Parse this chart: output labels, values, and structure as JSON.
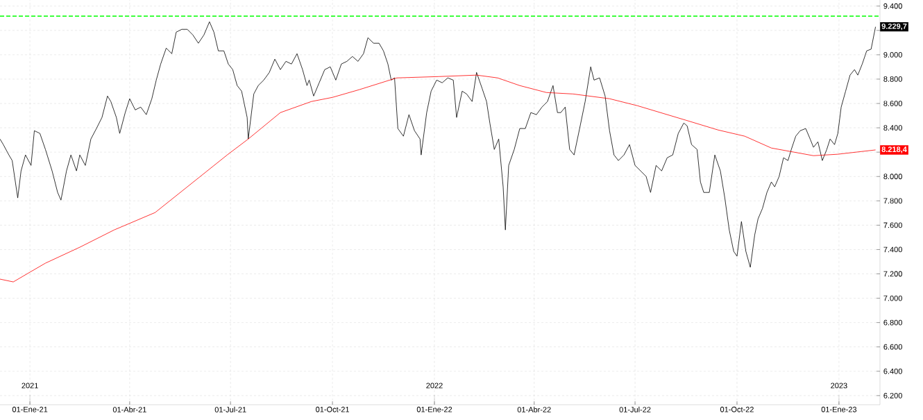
{
  "chart_data": {
    "type": "line",
    "xlim": [
      "2020-12-05",
      "2023-02-07"
    ],
    "ylim": [
      6125,
      9450
    ],
    "xticks": [
      {
        "value": "2021-01-01",
        "label": "01-Ene-21"
      },
      {
        "value": "2021-04-01",
        "label": "01-Abr-21"
      },
      {
        "value": "2021-07-01",
        "label": "01-Jul-21"
      },
      {
        "value": "2021-10-01",
        "label": "01-Oct-21"
      },
      {
        "value": "2022-01-01",
        "label": "01-Ene-22"
      },
      {
        "value": "2022-04-01",
        "label": "01-Abr-22"
      },
      {
        "value": "2022-07-01",
        "label": "01-Jul-22"
      },
      {
        "value": "2022-10-01",
        "label": "01-Oct-22"
      },
      {
        "value": "2023-01-01",
        "label": "01-Ene-23"
      }
    ],
    "yticks": [
      {
        "value": 6200,
        "label": "6.200"
      },
      {
        "value": 6400,
        "label": "6.400"
      },
      {
        "value": 6600,
        "label": "6.600"
      },
      {
        "value": 6800,
        "label": "6.800"
      },
      {
        "value": 7000,
        "label": "7.000"
      },
      {
        "value": 7200,
        "label": "7.200"
      },
      {
        "value": 7400,
        "label": "7.400"
      },
      {
        "value": 7600,
        "label": "7.600"
      },
      {
        "value": 7800,
        "label": "7.800"
      },
      {
        "value": 8000,
        "label": "8.000"
      },
      {
        "value": 8200,
        "label": null
      },
      {
        "value": 8400,
        "label": "8.400"
      },
      {
        "value": 8600,
        "label": "8.600"
      },
      {
        "value": 8800,
        "label": "8.800"
      },
      {
        "value": 9000,
        "label": "9.000"
      },
      {
        "value": 9200,
        "label": null
      },
      {
        "value": 9400,
        "label": "9.400"
      }
    ],
    "grid": true,
    "series": [
      {
        "color": "#000000",
        "x": [
          "2020-12-05",
          "2020-12-08",
          "2020-12-13",
          "2020-12-16",
          "2020-12-21",
          "2020-12-24",
          "2020-12-28",
          "2021-01-02",
          "2021-01-05",
          "2021-01-10",
          "2021-01-15",
          "2021-01-21",
          "2021-01-26",
          "2021-01-29",
          "2021-02-03",
          "2021-02-07",
          "2021-02-12",
          "2021-02-15",
          "2021-02-20",
          "2021-02-25",
          "2021-03-02",
          "2021-03-07",
          "2021-03-12",
          "2021-03-15",
          "2021-03-20",
          "2021-03-23",
          "2021-03-28",
          "2021-04-01",
          "2021-04-06",
          "2021-04-11",
          "2021-04-16",
          "2021-04-21",
          "2021-04-25",
          "2021-04-29",
          "2021-05-04",
          "2021-05-09",
          "2021-05-13",
          "2021-05-18",
          "2021-05-23",
          "2021-05-28",
          "2021-06-02",
          "2021-06-07",
          "2021-06-12",
          "2021-06-16",
          "2021-06-20",
          "2021-06-25",
          "2021-06-29",
          "2021-07-03",
          "2021-07-07",
          "2021-07-11",
          "2021-07-16",
          "2021-07-17",
          "2021-07-22",
          "2021-07-26",
          "2021-07-31",
          "2021-08-05",
          "2021-08-10",
          "2021-08-15",
          "2021-08-20",
          "2021-08-25",
          "2021-08-30",
          "2021-09-04",
          "2021-09-08",
          "2021-09-10",
          "2021-09-14",
          "2021-09-19",
          "2021-09-24",
          "2021-09-29",
          "2021-10-04",
          "2021-10-09",
          "2021-10-14",
          "2021-10-19",
          "2021-10-24",
          "2021-10-29",
          "2021-11-02",
          "2021-11-07",
          "2021-11-12",
          "2021-11-16",
          "2021-11-20",
          "2021-11-23",
          "2021-11-26",
          "2021-11-29",
          "2021-12-04",
          "2021-12-09",
          "2021-12-14",
          "2021-12-19",
          "2021-12-20",
          "2021-12-25",
          "2021-12-29",
          "2022-01-03",
          "2022-01-08",
          "2022-01-13",
          "2022-01-18",
          "2022-01-21",
          "2022-01-26",
          "2022-01-30",
          "2022-02-04",
          "2022-02-08",
          "2022-02-13",
          "2022-02-17",
          "2022-02-20",
          "2022-02-24",
          "2022-02-28",
          "2022-03-04",
          "2022-03-06",
          "2022-03-09",
          "2022-03-14",
          "2022-03-19",
          "2022-03-24",
          "2022-03-29",
          "2022-04-03",
          "2022-04-08",
          "2022-04-13",
          "2022-04-18",
          "2022-04-22",
          "2022-04-25",
          "2022-04-29",
          "2022-05-03",
          "2022-05-07",
          "2022-05-12",
          "2022-05-17",
          "2022-05-22",
          "2022-05-25",
          "2022-05-30",
          "2022-06-04",
          "2022-06-08",
          "2022-06-12",
          "2022-06-16",
          "2022-06-21",
          "2022-06-26",
          "2022-07-01",
          "2022-07-06",
          "2022-07-11",
          "2022-07-15",
          "2022-07-20",
          "2022-07-25",
          "2022-07-30",
          "2022-08-04",
          "2022-08-09",
          "2022-08-14",
          "2022-08-17",
          "2022-08-21",
          "2022-08-26",
          "2022-08-29",
          "2022-09-01",
          "2022-09-06",
          "2022-09-11",
          "2022-09-16",
          "2022-09-20",
          "2022-09-24",
          "2022-09-28",
          "2022-10-01",
          "2022-10-05",
          "2022-10-09",
          "2022-10-13",
          "2022-10-17",
          "2022-10-20",
          "2022-10-24",
          "2022-10-28",
          "2022-11-01",
          "2022-11-04",
          "2022-11-08",
          "2022-11-12",
          "2022-11-16",
          "2022-11-19",
          "2022-11-23",
          "2022-11-27",
          "2022-12-02",
          "2022-12-06",
          "2022-12-09",
          "2022-12-13",
          "2022-12-17",
          "2022-12-21",
          "2022-12-24",
          "2022-12-28",
          "2022-12-31",
          "2023-01-03",
          "2023-01-07",
          "2023-01-11",
          "2023-01-15",
          "2023-01-18",
          "2023-01-22",
          "2023-01-26",
          "2023-01-30",
          "2023-02-03"
        ],
        "values": [
          8308,
          8262,
          8177,
          8131,
          7824,
          8046,
          8177,
          8091,
          8376,
          8354,
          8222,
          8046,
          7869,
          7806,
          8046,
          8177,
          8046,
          8177,
          8091,
          8308,
          8394,
          8485,
          8661,
          8616,
          8485,
          8354,
          8525,
          8639,
          8547,
          8570,
          8508,
          8639,
          8792,
          8924,
          9055,
          9009,
          9186,
          9209,
          9209,
          9163,
          9095,
          9163,
          9271,
          9186,
          9032,
          9032,
          8924,
          8878,
          8747,
          8701,
          8485,
          8308,
          8678,
          8747,
          8792,
          8855,
          8964,
          8878,
          8946,
          8924,
          9009,
          8878,
          8747,
          8792,
          8661,
          8770,
          8878,
          8901,
          8792,
          8924,
          8946,
          8986,
          8946,
          9009,
          9140,
          9095,
          9095,
          9032,
          8924,
          8792,
          8810,
          8394,
          8331,
          8508,
          8376,
          8308,
          8177,
          8525,
          8701,
          8792,
          8770,
          8810,
          8792,
          8485,
          8701,
          8678,
          8616,
          8855,
          8724,
          8616,
          8439,
          8222,
          8308,
          7915,
          7561,
          8091,
          8222,
          8394,
          8394,
          8525,
          8508,
          8570,
          8616,
          8747,
          8525,
          8525,
          8570,
          8222,
          8177,
          8394,
          8616,
          8901,
          8792,
          8810,
          8661,
          8376,
          8177,
          8131,
          8177,
          8262,
          8091,
          8046,
          8000,
          7869,
          8091,
          8046,
          8154,
          8177,
          8354,
          8439,
          8416,
          8262,
          8222,
          7955,
          7869,
          7869,
          8177,
          8046,
          7824,
          7561,
          7385,
          7345,
          7630,
          7385,
          7254,
          7521,
          7652,
          7738,
          7869,
          7955,
          7915,
          8000,
          8154,
          8131,
          8222,
          8331,
          8376,
          8394,
          8308,
          8240,
          8285,
          8131,
          8222,
          8308,
          8262,
          8354,
          8570,
          8701,
          8833,
          8878,
          8833,
          8924,
          9032,
          9046,
          9229.7
        ],
        "value_labels": [
          null,
          null,
          null,
          null,
          null,
          null,
          null,
          null,
          null,
          null,
          null,
          null,
          null,
          null,
          null,
          null,
          null,
          null,
          null,
          null,
          null,
          null,
          null,
          null,
          null,
          null,
          null,
          null,
          null,
          null,
          null,
          null,
          null,
          null,
          null,
          null,
          null,
          null,
          null,
          null,
          null,
          null,
          null,
          null,
          null,
          null,
          null,
          null,
          null,
          null,
          null,
          null,
          null,
          null,
          null,
          null,
          null,
          null,
          null,
          null,
          null,
          null,
          null,
          null,
          null,
          null,
          null,
          null,
          null,
          null,
          null,
          null,
          null,
          null,
          null,
          null,
          null,
          null,
          null,
          null,
          null,
          null,
          null,
          null,
          null,
          null,
          null,
          null,
          null,
          null,
          null,
          null,
          null,
          null,
          null,
          null,
          null,
          null,
          null,
          null,
          null,
          null,
          null,
          null,
          null,
          null,
          null,
          null,
          null,
          null,
          null,
          null,
          null,
          null,
          null,
          null,
          null,
          null,
          null,
          null,
          null,
          null,
          null,
          null,
          null,
          null,
          null,
          null,
          null,
          null,
          null,
          null,
          null,
          null,
          null,
          null,
          null,
          null,
          null,
          null,
          null,
          null,
          null,
          null,
          null,
          null,
          null,
          null,
          null,
          null,
          null,
          null,
          null,
          null,
          null,
          null,
          null,
          null,
          null,
          null,
          null,
          null,
          null,
          null,
          null,
          null,
          null,
          null,
          null,
          null,
          null,
          null,
          null,
          null,
          null,
          null,
          null,
          null,
          null,
          null,
          null,
          null,
          null,
          null,
          "9.229,7"
        ]
      },
      {
        "color": "#ff0000",
        "x": [
          "2020-12-05",
          "2020-12-17",
          "2021-01-01",
          "2021-01-15",
          "2021-02-15",
          "2021-03-18",
          "2021-04-24",
          "2021-05-23",
          "2021-06-28",
          "2021-07-17",
          "2021-08-15",
          "2021-09-12",
          "2021-10-01",
          "2021-10-25",
          "2021-11-28",
          "2022-01-05",
          "2022-02-08",
          "2022-02-27",
          "2022-03-19",
          "2022-04-12",
          "2022-05-06",
          "2022-06-08",
          "2022-07-03",
          "2022-08-16",
          "2022-09-14",
          "2022-10-08",
          "2022-11-01",
          "2022-12-09",
          "2022-12-31",
          "2023-02-03"
        ],
        "values": [
          7157,
          7134,
          7214,
          7288,
          7419,
          7561,
          7704,
          7915,
          8177,
          8308,
          8525,
          8616,
          8650,
          8713,
          8810,
          8821,
          8833,
          8810,
          8747,
          8690,
          8678,
          8639,
          8582,
          8462,
          8382,
          8331,
          8234,
          8171,
          8183,
          8218.4
        ],
        "value_labels": [
          null,
          null,
          null,
          null,
          null,
          null,
          null,
          null,
          null,
          null,
          null,
          null,
          null,
          null,
          null,
          null,
          null,
          null,
          null,
          null,
          null,
          null,
          null,
          null,
          null,
          null,
          null,
          null,
          null,
          "8.218,4"
        ]
      }
    ],
    "ref_lines": [
      {
        "axis": "y",
        "value": 9317,
        "color": "#00ff00",
        "line_style": "dashed"
      }
    ],
    "x2lim": [
      "2020-12-05",
      "2023-02-07"
    ],
    "x2ticks": [
      {
        "value": "2021-01-01",
        "label": "2021"
      },
      {
        "value": "2022-01-01",
        "label": "2022"
      },
      {
        "value": "2023-01-01",
        "label": "2023"
      }
    ]
  }
}
